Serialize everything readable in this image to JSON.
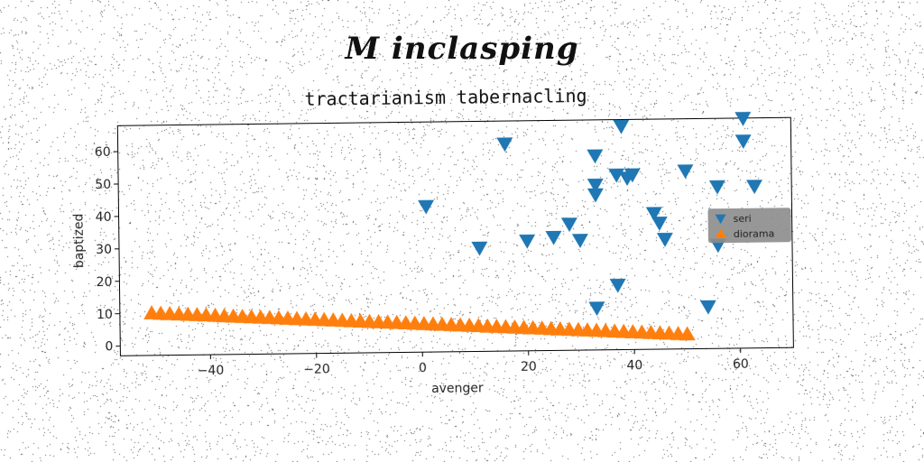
{
  "suptitle": "M inclasping",
  "chart_data": {
    "type": "scatter",
    "title": "tractarianism tabernacling",
    "xlabel": "avenger",
    "ylabel": "baptized",
    "xlim": [
      -57,
      70
    ],
    "ylim": [
      -3,
      68
    ],
    "xticks": [
      -40,
      -20,
      0,
      20,
      40,
      60
    ],
    "yticks": [
      0,
      10,
      20,
      30,
      40,
      50,
      60
    ],
    "grid": false,
    "legend_position": "center-right",
    "series": [
      {
        "name": "seri",
        "marker": "triangle-down",
        "color": "#1f77b4",
        "x": [
          1,
          11,
          16,
          20,
          25,
          28,
          30,
          33,
          33,
          33,
          33,
          37,
          37,
          38,
          39,
          40,
          44,
          45,
          46,
          50,
          54,
          56,
          56,
          61,
          61,
          63
        ],
        "y": [
          42,
          29,
          61,
          31,
          32,
          36,
          31,
          10,
          45,
          48,
          57,
          17,
          51,
          66,
          50,
          51,
          39,
          36,
          31,
          52,
          10,
          47,
          29,
          68,
          61,
          47
        ]
      },
      {
        "name": "diorama",
        "marker": "triangle-up",
        "color": "#ff7f0e",
        "x_start": -51,
        "x_end": 50,
        "count": 60,
        "y_start": 10,
        "y_end": 1.5
      }
    ]
  }
}
